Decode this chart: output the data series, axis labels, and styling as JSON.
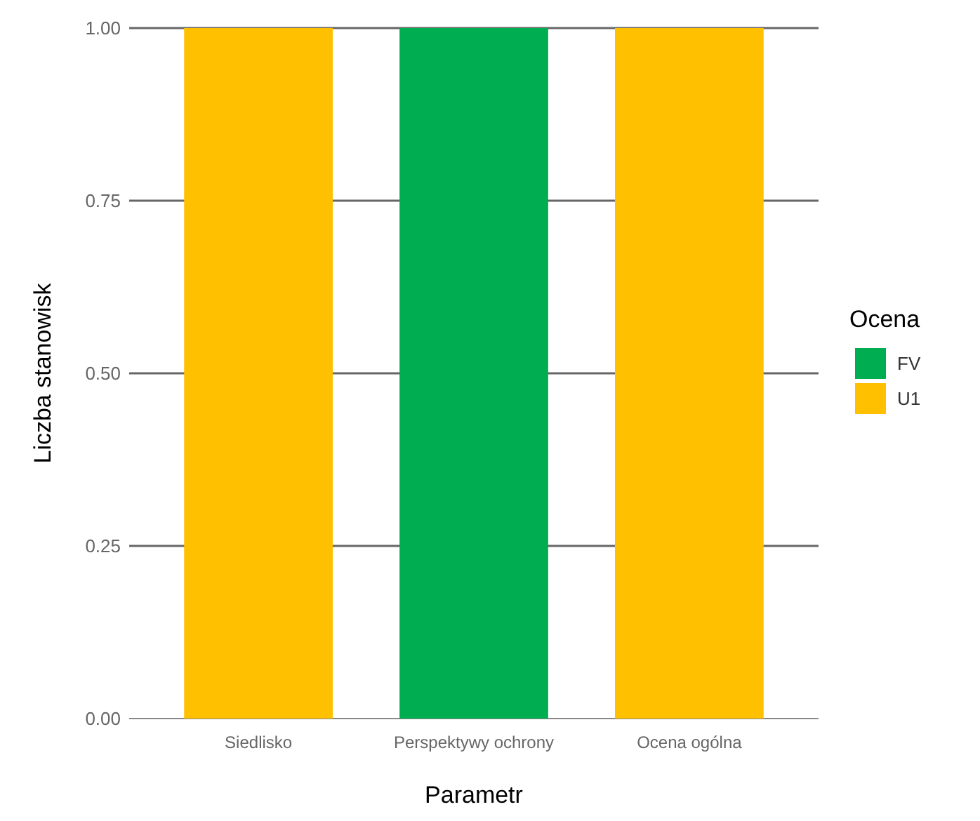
{
  "chart_data": {
    "type": "bar",
    "xlabel": "Parametr",
    "ylabel": "Liczba stanowisk",
    "legend_title": "Ocena",
    "categories": [
      "Siedlisko",
      "Perspektywy ochrony",
      "Ocena ogólna"
    ],
    "series": [
      {
        "name": "FV",
        "color": "#00ad50",
        "values": [
          0,
          1,
          0
        ]
      },
      {
        "name": "U1",
        "color": "#ffc000",
        "values": [
          1,
          0,
          1
        ]
      }
    ],
    "ylim": [
      0,
      1
    ],
    "yticks": [
      {
        "value": 0,
        "label": "0.00"
      },
      {
        "value": 0.25,
        "label": "0.25"
      },
      {
        "value": 0.5,
        "label": "0.50"
      },
      {
        "value": 0.75,
        "label": "0.75"
      },
      {
        "value": 1,
        "label": "1.00"
      }
    ],
    "grid": "y",
    "legend": "right"
  }
}
